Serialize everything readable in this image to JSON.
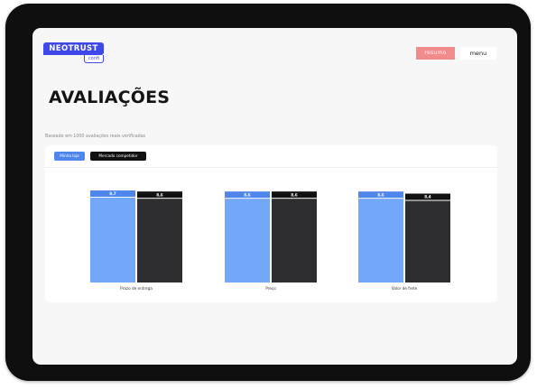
{
  "header": {
    "logo_main": "NEOTRUST",
    "logo_sub": "confi",
    "resumo_label": "resumo",
    "menu_label": "menu"
  },
  "page": {
    "title": "AVALIAÇÕES",
    "subtitle": "Baseado em 1000 avaliações reais verificadas"
  },
  "legend": {
    "minha_loja": "Minha loja",
    "mercado": "Mercado competidor"
  },
  "colors": {
    "minha_loja": "#73a7f7",
    "mercado": "#2e2e31",
    "accent": "#3f48e8",
    "resumo": "#f28b8c"
  },
  "chart_data": {
    "type": "bar",
    "categories": [
      "Prazo de entrega",
      "Preço",
      "Valor de frete"
    ],
    "series": [
      {
        "name": "Minha loja",
        "values": [
          8.7,
          8.6,
          8.6
        ],
        "labels": [
          "8,7",
          "8,6",
          "8,6"
        ]
      },
      {
        "name": "Mercado competidor",
        "values": [
          8.6,
          8.6,
          8.4
        ],
        "labels": [
          "8,6",
          "8,6",
          "8,4"
        ]
      }
    ],
    "ylim": [
      0,
      8.7
    ],
    "grid": false
  }
}
